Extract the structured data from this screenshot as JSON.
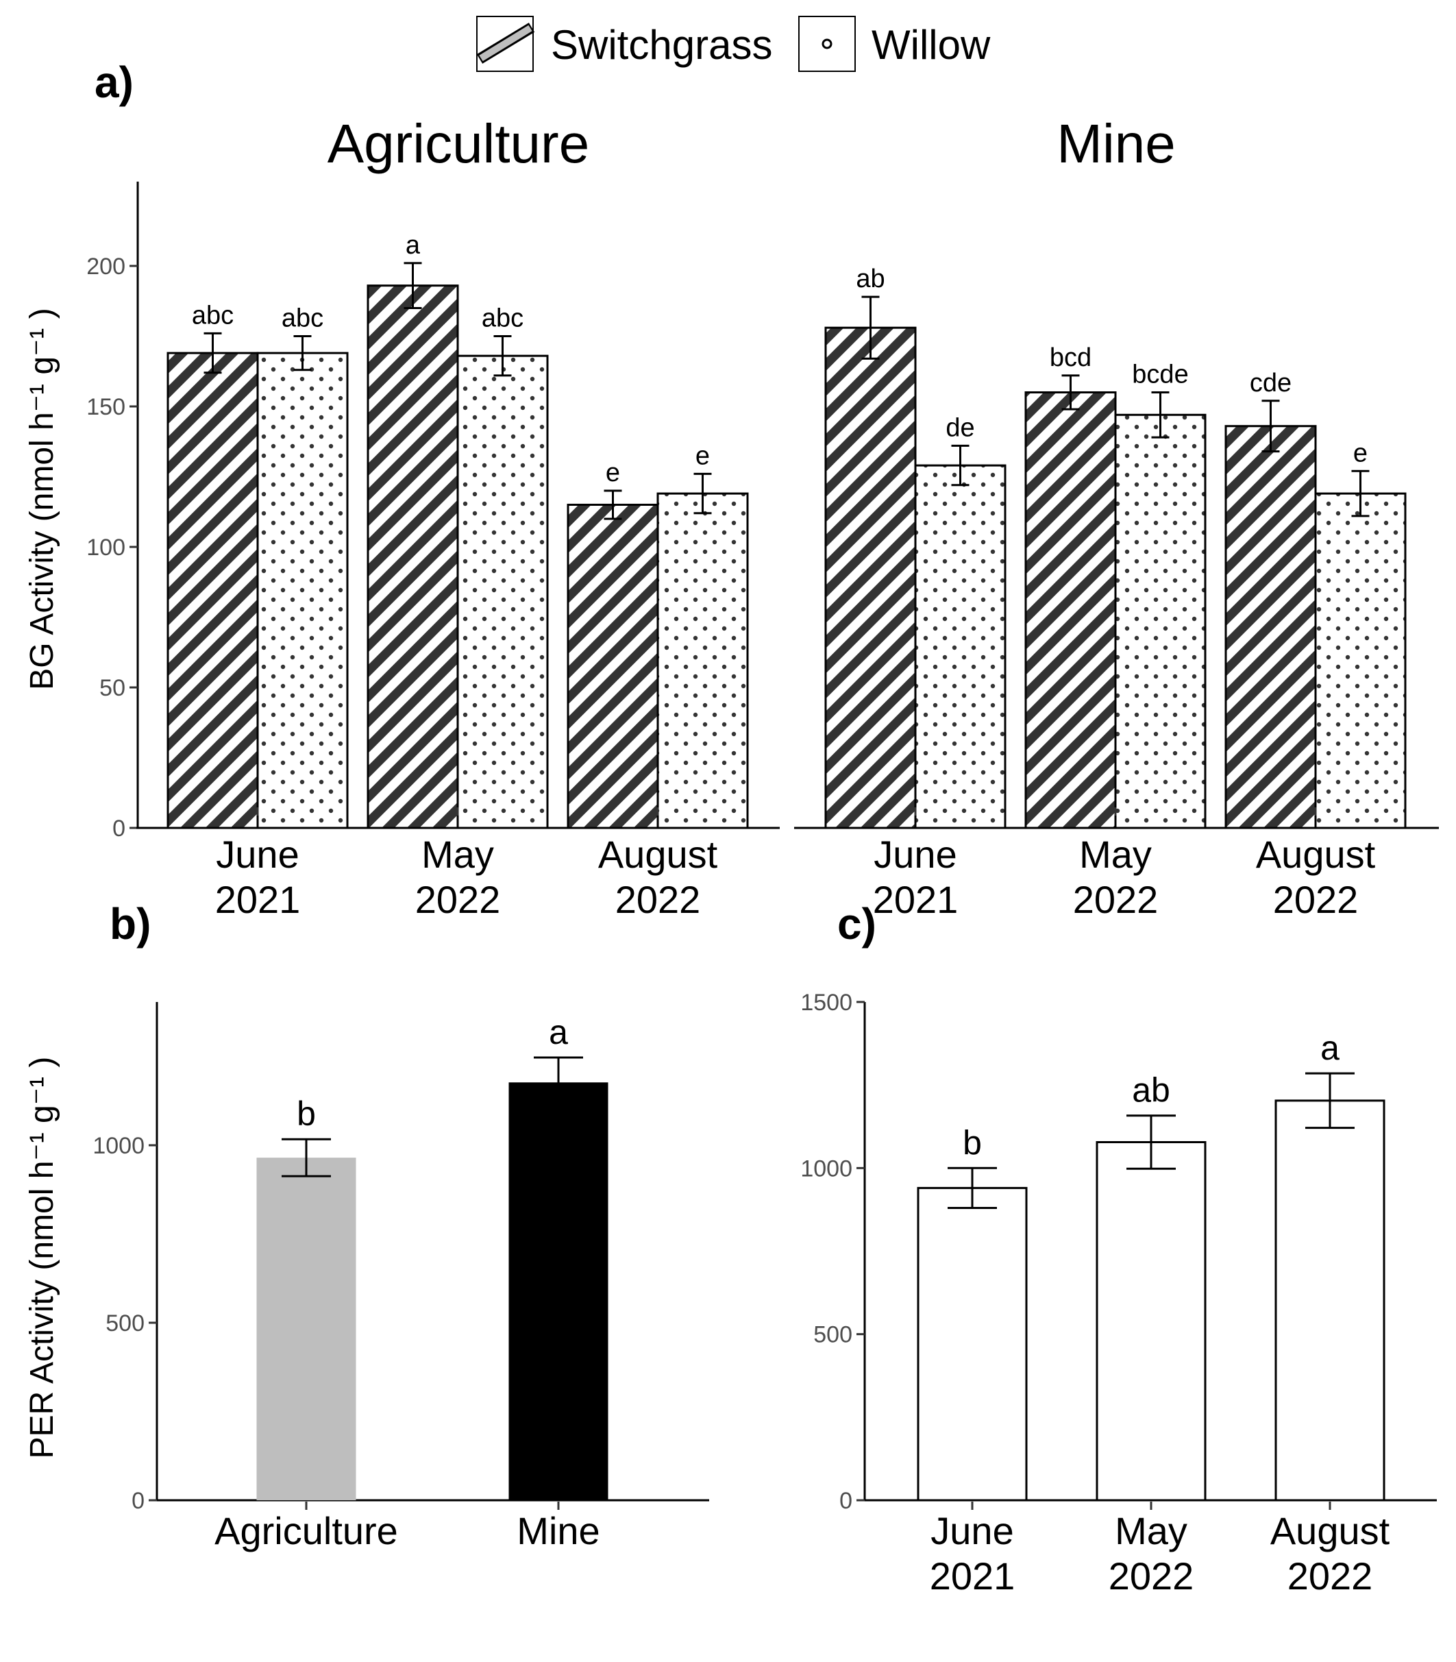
{
  "legend": {
    "items": [
      {
        "label": "Switchgrass",
        "pattern": "stripes"
      },
      {
        "label": "Willow",
        "pattern": "dots"
      }
    ]
  },
  "chart_data": [
    {
      "panel": "a)",
      "type": "bar",
      "ylabel": "BG Activity (nmol h⁻¹ g⁻¹ )",
      "ylim": [
        0,
        230
      ],
      "yticks": [
        0,
        50,
        100,
        150,
        200
      ],
      "categories": [
        "June 2021",
        "May 2022",
        "August 2022"
      ],
      "facets": [
        {
          "title": "Agriculture",
          "series": [
            {
              "name": "Switchgrass",
              "values": [
                169,
                193,
                115
              ],
              "errors": [
                7,
                8,
                5
              ],
              "letters": [
                "abc",
                "a",
                "e"
              ]
            },
            {
              "name": "Willow",
              "values": [
                169,
                168,
                119
              ],
              "errors": [
                6,
                7,
                7
              ],
              "letters": [
                "abc",
                "abc",
                "e"
              ]
            }
          ]
        },
        {
          "title": "Mine",
          "series": [
            {
              "name": "Switchgrass",
              "values": [
                178,
                155,
                143
              ],
              "errors": [
                11,
                6,
                9
              ],
              "letters": [
                "ab",
                "bcd",
                "cde"
              ]
            },
            {
              "name": "Willow",
              "values": [
                129,
                147,
                119
              ],
              "errors": [
                7,
                8,
                8
              ],
              "letters": [
                "de",
                "bcde",
                "e"
              ]
            }
          ]
        }
      ]
    },
    {
      "panel": "b)",
      "type": "bar",
      "ylabel": "PER Activity (nmol h⁻¹ g⁻¹ )",
      "ylim": [
        0,
        1400
      ],
      "yticks": [
        0,
        500,
        1000
      ],
      "categories": [
        "Agriculture",
        "Mine"
      ],
      "values": [
        965,
        1177
      ],
      "errors": [
        52,
        70
      ],
      "letters": [
        "b",
        "a"
      ],
      "colors": [
        "#bebebe",
        "#000000"
      ]
    },
    {
      "panel": "c)",
      "type": "bar",
      "ylabel": "",
      "ylim": [
        0,
        1500
      ],
      "yticks": [
        0,
        500,
        1000,
        1500
      ],
      "categories": [
        "June 2021",
        "May 2022",
        "August 2022"
      ],
      "values": [
        940,
        1078,
        1203
      ],
      "errors": [
        60,
        80,
        82
      ],
      "letters": [
        "b",
        "ab",
        "a"
      ],
      "colors": [
        "#ffffff",
        "#ffffff",
        "#ffffff"
      ]
    }
  ]
}
